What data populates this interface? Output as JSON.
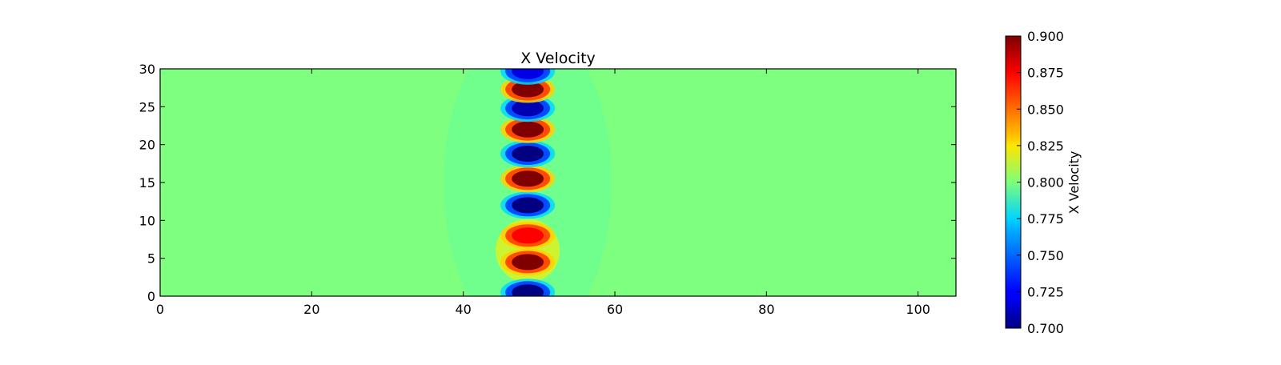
{
  "chart_data": [
    {
      "type": "heatmap",
      "title": "X Velocity",
      "xlabel": "",
      "ylabel": "",
      "xlim": [
        0,
        105
      ],
      "ylim": [
        0,
        30
      ],
      "xticks": [
        0,
        20,
        40,
        60,
        80,
        100
      ],
      "yticks": [
        0,
        5,
        10,
        15,
        20,
        25,
        30
      ],
      "background_value": 0.8,
      "feature_center_x": 48.5,
      "features": [
        {
          "x": 48.5,
          "y": 0.5,
          "value": 0.7
        },
        {
          "x": 48.5,
          "y": 4.5,
          "value": 0.9
        },
        {
          "x": 48.5,
          "y": 8.0,
          "value": 0.875
        },
        {
          "x": 48.5,
          "y": 12.0,
          "value": 0.7
        },
        {
          "x": 48.5,
          "y": 15.5,
          "value": 0.9
        },
        {
          "x": 48.5,
          "y": 18.8,
          "value": 0.7
        },
        {
          "x": 48.5,
          "y": 22.0,
          "value": 0.9
        },
        {
          "x": 48.5,
          "y": 24.8,
          "value": 0.71
        },
        {
          "x": 48.5,
          "y": 27.3,
          "value": 0.9
        },
        {
          "x": 48.5,
          "y": 29.7,
          "value": 0.72
        }
      ],
      "colorbar": {
        "label": "X Velocity",
        "min": 0.7,
        "max": 0.9,
        "ticks": [
          "0.700",
          "0.725",
          "0.750",
          "0.775",
          "0.800",
          "0.825",
          "0.850",
          "0.875",
          "0.900"
        ],
        "colormap": "jet"
      }
    }
  ]
}
